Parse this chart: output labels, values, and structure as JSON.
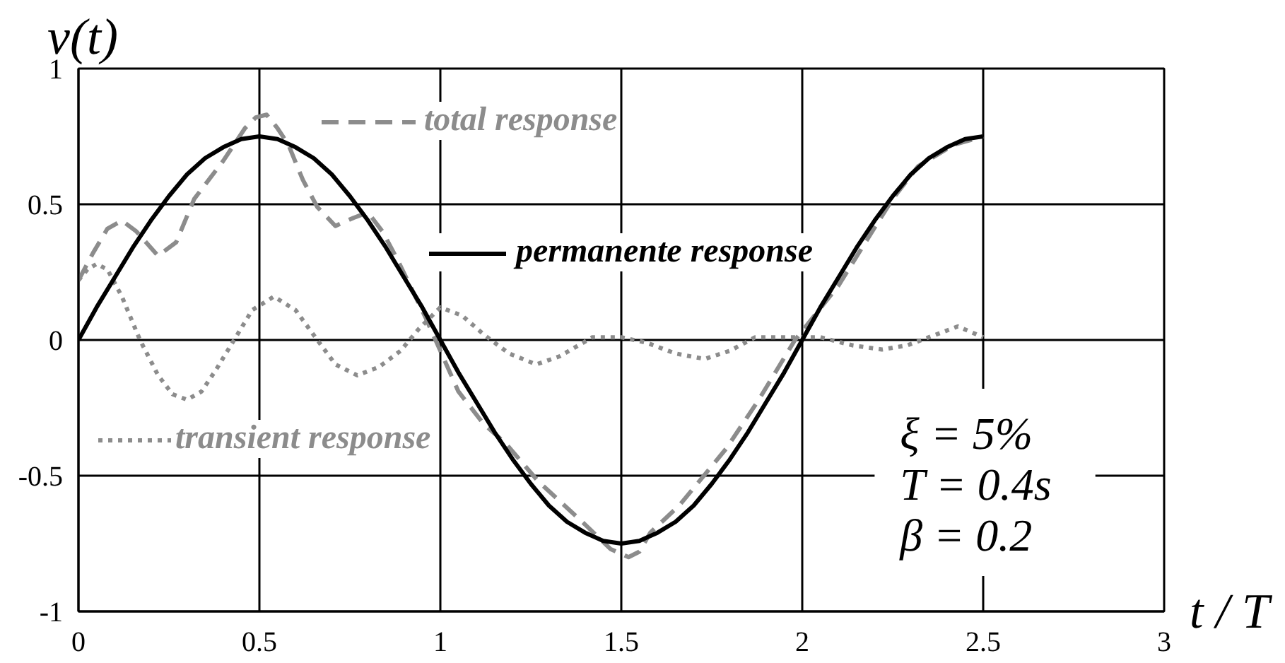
{
  "chart_data": {
    "type": "line",
    "xlabel": "t / T",
    "ylabel": "v(t)",
    "xlim": [
      0,
      3
    ],
    "ylim": [
      -1,
      1
    ],
    "xticks": [
      0,
      0.5,
      1,
      1.5,
      2,
      2.5,
      3
    ],
    "yticks": [
      -1,
      -0.5,
      0,
      0.5,
      1
    ],
    "grid": true,
    "legend": "top",
    "marker": "none",
    "series": [
      {
        "name": "transient response",
        "color": "#8c8c8c",
        "line_style": "dotted",
        "x": [
          0,
          0.025,
          0.05,
          0.08,
          0.12,
          0.17,
          0.22,
          0.26,
          0.3,
          0.34,
          0.38,
          0.43,
          0.48,
          0.54,
          0.6,
          0.66,
          0.71,
          0.77,
          0.83,
          0.89,
          0.94,
          1.0,
          1.06,
          1.12,
          1.19,
          1.265,
          1.33,
          1.42,
          1.5,
          1.57,
          1.65,
          1.73,
          1.8,
          1.87,
          2.0,
          2.05,
          2.14,
          2.22,
          2.29,
          2.35,
          2.43,
          2.5
        ],
        "values": [
          0.22,
          0.26,
          0.28,
          0.26,
          0.16,
          0.0,
          -0.13,
          -0.2,
          -0.22,
          -0.19,
          -0.11,
          0.0,
          0.11,
          0.16,
          0.11,
          0.0,
          -0.09,
          -0.13,
          -0.1,
          -0.04,
          0.04,
          0.12,
          0.09,
          0.02,
          -0.05,
          -0.09,
          -0.06,
          0.01,
          0.01,
          -0.01,
          -0.05,
          -0.07,
          -0.04,
          0.01,
          0.01,
          0.01,
          -0.02,
          -0.035,
          -0.02,
          0.01,
          0.05,
          0.01
        ]
      },
      {
        "name": "total response",
        "color": "#8c8c8c",
        "line_style": "dashed",
        "x": [
          0,
          0.04,
          0.08,
          0.12,
          0.16,
          0.22,
          0.27,
          0.32,
          0.4,
          0.46,
          0.49,
          0.52,
          0.55,
          0.58,
          0.62,
          0.66,
          0.71,
          0.76,
          0.8,
          0.84,
          0.88,
          0.92,
          0.96,
          1.0,
          1.05,
          1.12,
          1.18,
          1.27,
          1.4,
          1.47,
          1.52,
          1.55,
          1.58,
          1.66,
          1.79,
          1.88,
          1.98,
          2.1,
          2.17,
          2.25,
          2.32,
          2.42,
          2.5
        ],
        "values": [
          0.22,
          0.32,
          0.41,
          0.44,
          0.4,
          0.31,
          0.36,
          0.52,
          0.66,
          0.78,
          0.82,
          0.83,
          0.78,
          0.72,
          0.59,
          0.49,
          0.42,
          0.45,
          0.47,
          0.4,
          0.3,
          0.19,
          0.08,
          -0.04,
          -0.19,
          -0.31,
          -0.38,
          -0.52,
          -0.68,
          -0.77,
          -0.8,
          -0.78,
          -0.71,
          -0.61,
          -0.4,
          -0.22,
          0.0,
          0.2,
          0.35,
          0.52,
          0.64,
          0.72,
          0.75
        ]
      },
      {
        "name": "permanente response",
        "color": "#000000",
        "line_style": "solid",
        "x": [
          0,
          0.05,
          0.1,
          0.15,
          0.2,
          0.25,
          0.3,
          0.35,
          0.4,
          0.45,
          0.5,
          0.55,
          0.6,
          0.65,
          0.7,
          0.75,
          0.8,
          0.85,
          0.9,
          0.95,
          1.0,
          1.05,
          1.1,
          1.15,
          1.2,
          1.25,
          1.3,
          1.35,
          1.4,
          1.45,
          1.5,
          1.55,
          1.6,
          1.65,
          1.7,
          1.75,
          1.8,
          1.85,
          1.9,
          1.95,
          2.0,
          2.05,
          2.1,
          2.15,
          2.2,
          2.25,
          2.3,
          2.35,
          2.4,
          2.45,
          2.5
        ],
        "values": [
          0,
          0.12,
          0.23,
          0.34,
          0.44,
          0.53,
          0.61,
          0.67,
          0.71,
          0.74,
          0.75,
          0.74,
          0.71,
          0.67,
          0.61,
          0.53,
          0.44,
          0.34,
          0.23,
          0.12,
          0,
          -0.12,
          -0.23,
          -0.34,
          -0.44,
          -0.53,
          -0.61,
          -0.67,
          -0.71,
          -0.74,
          -0.75,
          -0.74,
          -0.71,
          -0.67,
          -0.61,
          -0.53,
          -0.44,
          -0.34,
          -0.23,
          -0.12,
          0,
          0.12,
          0.23,
          0.34,
          0.44,
          0.53,
          0.61,
          0.67,
          0.71,
          0.74,
          0.75
        ]
      }
    ],
    "annotations": [
      "ξ = 5%",
      "T = 0.4s",
      "β = 0.2"
    ]
  }
}
